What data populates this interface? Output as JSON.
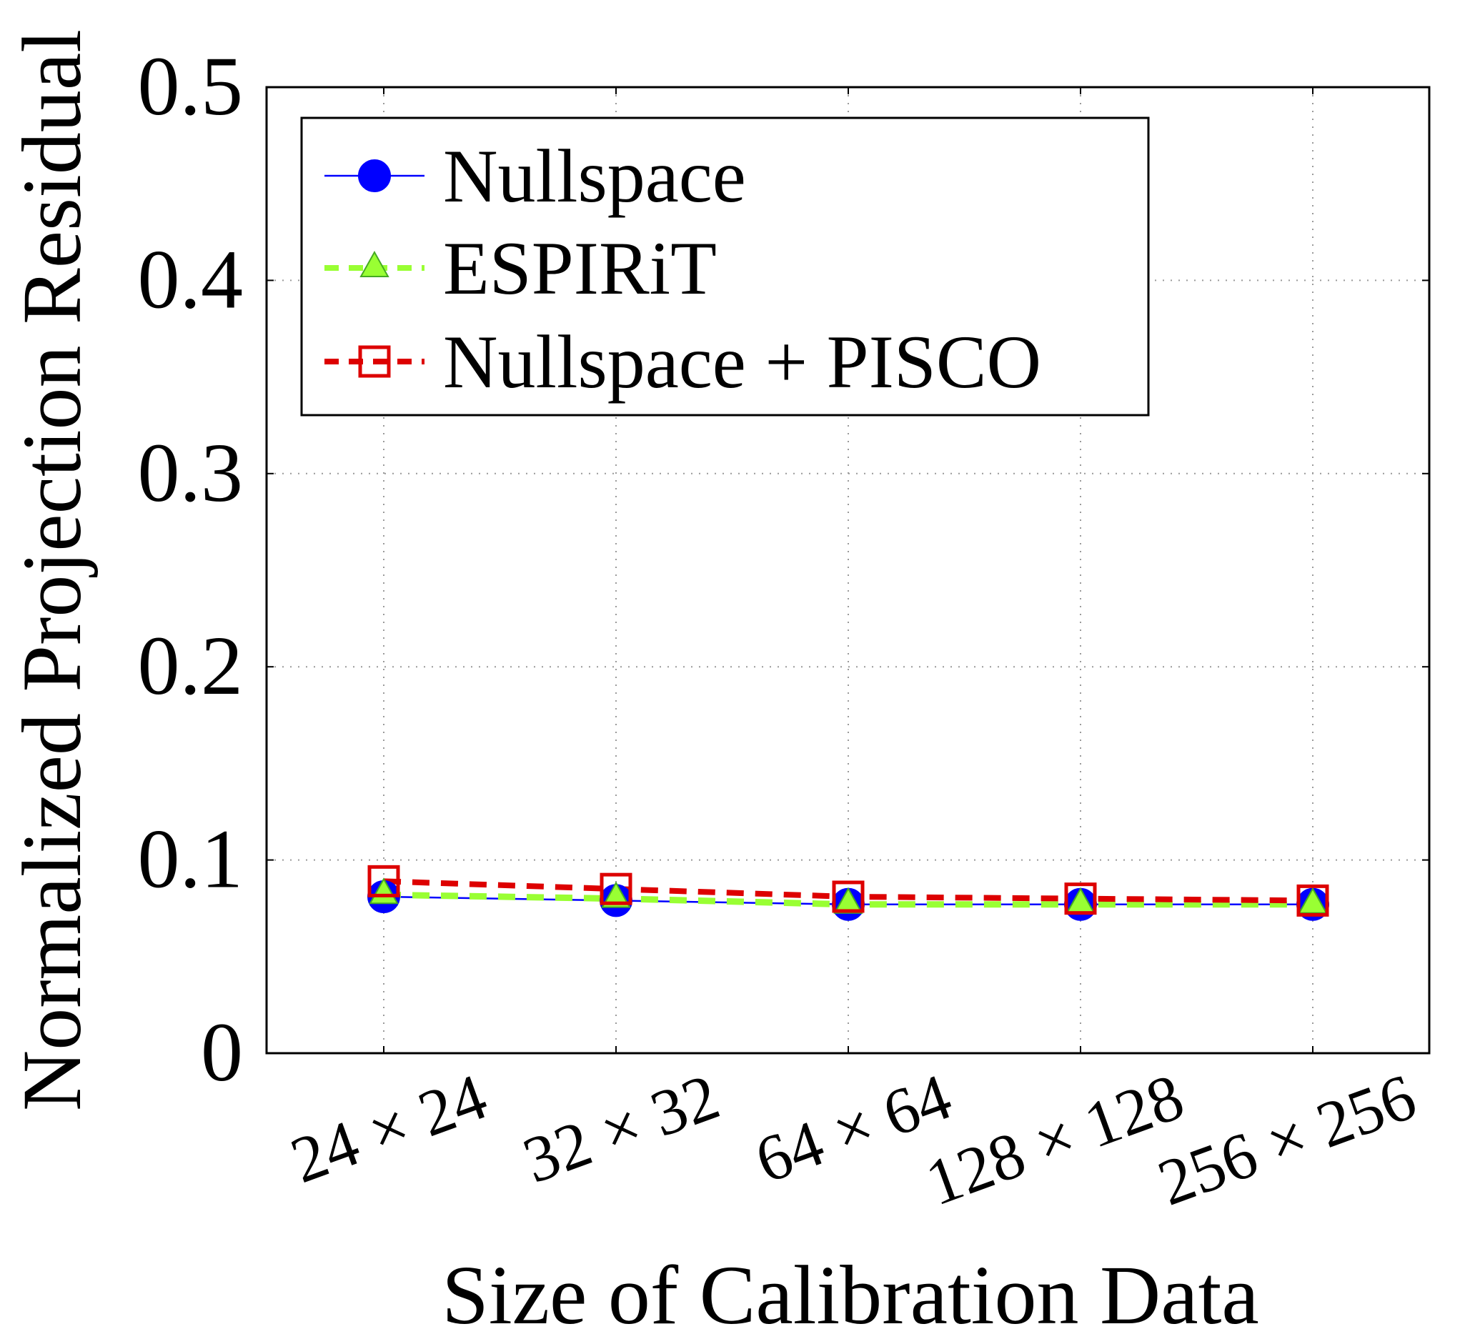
{
  "chart_data": {
    "type": "line",
    "title": "",
    "xlabel": "Size of Calibration Data",
    "ylabel": "Normalized Projection Residual",
    "categories": [
      "24 × 24",
      "32 × 32",
      "64 × 64",
      "128 × 128",
      "256 × 256"
    ],
    "ylim": [
      0,
      0.5
    ],
    "yticks": [
      "0",
      "0.1",
      "0.2",
      "0.3",
      "0.4",
      "0.5"
    ],
    "ytick_values": [
      0,
      0.1,
      0.2,
      0.3,
      0.4,
      0.5
    ],
    "grid": true,
    "legend_position": "top-left",
    "series": [
      {
        "name": "Nullspace",
        "values": [
          0.081,
          0.079,
          0.077,
          0.077,
          0.077
        ],
        "color": "#0000ff",
        "line_style": "solid",
        "marker": "circle"
      },
      {
        "name": "ESPIRiT",
        "values": [
          0.082,
          0.08,
          0.077,
          0.077,
          0.077
        ],
        "color": "#99ff33",
        "line_style": "dashed",
        "marker": "triangle"
      },
      {
        "name": "Nullspace + PISCO",
        "values": [
          0.089,
          0.085,
          0.081,
          0.08,
          0.079
        ],
        "color": "#dd0000",
        "line_style": "dashed",
        "marker": "square-open"
      }
    ]
  }
}
